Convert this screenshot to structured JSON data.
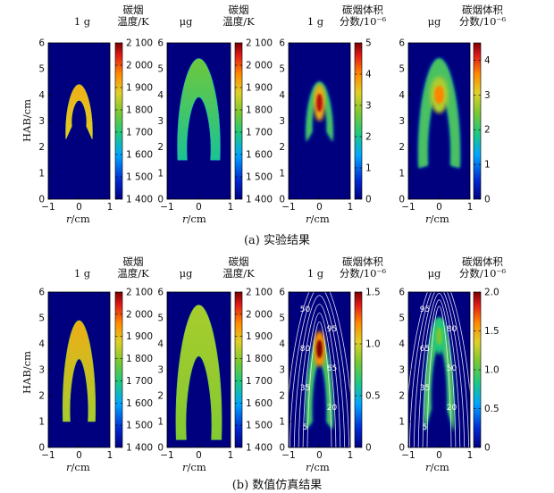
{
  "captions": {
    "row_a": "(a) 实验结果",
    "row_b": "(b) 数值仿真结果"
  },
  "gravity": {
    "normal": "1 g",
    "micro": "μg"
  },
  "colorbar_titles": {
    "temp_line1": "碳烟",
    "temp_line2": "温度/K",
    "vf_line1": "碳烟体积",
    "vf_line2": "分数/10⁻⁶"
  },
  "axis": {
    "ylabel": "HAB/cm",
    "xlabel_var": "r",
    "xlabel_unit": "/cm"
  },
  "colors": {
    "cmap": [
      "#00007f",
      "#0028d0",
      "#00a5ff",
      "#1fc880",
      "#78c832",
      "#e0d028",
      "#ff8a00",
      "#e01818",
      "#7a0000"
    ]
  },
  "chart_data": [
    {
      "type": "heatmap",
      "row": "a",
      "gravity": "1 g",
      "quantity": "碳烟温度/K",
      "xlim": [
        -1,
        1
      ],
      "ylim": [
        0,
        6
      ],
      "xticks": [
        -1,
        0,
        1
      ],
      "yticks": [
        0,
        1,
        2,
        3,
        4,
        5,
        6
      ],
      "colorbar": {
        "range": [
          1400,
          2100
        ],
        "ticks": [
          "1 400",
          "1 500",
          "1 600",
          "1 700",
          "1 800",
          "1 900",
          "2 000",
          "2 100"
        ]
      },
      "flame": {
        "tip_height": 4.4,
        "outer_base_height": 2.3,
        "inner_base_height": 2.8,
        "half_width": 0.45,
        "value_range": [
          1840,
          1880
        ]
      }
    },
    {
      "type": "heatmap",
      "row": "a",
      "gravity": "μg",
      "quantity": "碳烟温度/K",
      "xlim": [
        -1,
        1
      ],
      "ylim": [
        0,
        6
      ],
      "xticks": [
        -1,
        0,
        1
      ],
      "yticks": [
        0,
        1,
        2,
        3,
        4,
        5,
        6
      ],
      "colorbar": {
        "range": [
          1400,
          2100
        ],
        "ticks": [
          "1 400",
          "1 500",
          "1 600",
          "1 700",
          "1 800",
          "1 900",
          "2 000",
          "2 100"
        ]
      },
      "flame": {
        "tip_height": 5.4,
        "outer_base_height": 1.5,
        "inner_base_height": 1.5,
        "half_width": 0.7,
        "value_range": [
          1650,
          1740
        ]
      }
    },
    {
      "type": "heatmap",
      "row": "a",
      "gravity": "1 g",
      "quantity": "碳烟体积分数/10⁻⁶",
      "xlim": [
        -1,
        1
      ],
      "ylim": [
        0,
        6
      ],
      "xticks": [
        -1,
        0,
        1
      ],
      "yticks": [
        0,
        1,
        2,
        3,
        4,
        5,
        6
      ],
      "colorbar": {
        "range": [
          0,
          5
        ],
        "ticks": [
          "0",
          "1",
          "2",
          "3",
          "4",
          "5"
        ]
      },
      "flame": {
        "tip_height": 4.5,
        "outer_base_height": 2.2,
        "inner_base_height": 2.6,
        "half_width": 0.45,
        "peak": 4.6,
        "peak_height": 3.7
      }
    },
    {
      "type": "heatmap",
      "row": "a",
      "gravity": "μg",
      "quantity": "碳烟体积分数/10⁻⁶",
      "xlim": [
        -1,
        1
      ],
      "ylim": [
        0,
        6
      ],
      "xticks": [
        -1,
        0,
        1
      ],
      "yticks": [
        0,
        1,
        2,
        3,
        4,
        5,
        6
      ],
      "colorbar": {
        "range": [
          0,
          4.5
        ],
        "ticks": [
          "0",
          "1",
          "2",
          "3",
          "4"
        ]
      },
      "flame": {
        "tip_height": 5.4,
        "outer_base_height": 1.2,
        "inner_base_height": 1.3,
        "half_width": 0.7,
        "peak": 3.4,
        "peak_height": 4.0
      }
    },
    {
      "type": "heatmap",
      "row": "b",
      "gravity": "1 g",
      "quantity": "碳烟温度/K",
      "xlim": [
        -1,
        1
      ],
      "ylim": [
        0,
        6
      ],
      "xticks": [
        -1,
        0,
        1
      ],
      "yticks": [
        0,
        1,
        2,
        3,
        4,
        5,
        6
      ],
      "colorbar": {
        "range": [
          1400,
          2100
        ],
        "ticks": [
          "1 400",
          "1 500",
          "1 600",
          "1 700",
          "1 800",
          "1 900",
          "2 000",
          "2 100"
        ]
      },
      "flame": {
        "tip_height": 4.9,
        "outer_base_height": 1.0,
        "inner_base_height": 1.0,
        "half_width": 0.55,
        "value_range": [
          1790,
          1880
        ]
      }
    },
    {
      "type": "heatmap",
      "row": "b",
      "gravity": "μg",
      "quantity": "碳烟温度/K",
      "xlim": [
        -1,
        1
      ],
      "ylim": [
        0,
        6
      ],
      "xticks": [
        -1,
        0,
        1
      ],
      "yticks": [
        0,
        1,
        2,
        3,
        4,
        5,
        6
      ],
      "colorbar": {
        "range": [
          1400,
          2100
        ],
        "ticks": [
          "1 400",
          "1 500",
          "1 600",
          "1 700",
          "1 800",
          "1 900",
          "2 000",
          "2 100"
        ]
      },
      "flame": {
        "tip_height": 5.5,
        "outer_base_height": 0.3,
        "inner_base_height": 0.3,
        "half_width": 0.75,
        "value_range": [
          1760,
          1790
        ]
      }
    },
    {
      "type": "heatmap",
      "row": "b",
      "gravity": "1 g",
      "quantity": "碳烟体积分数/10⁻⁶",
      "xlim": [
        -1,
        1
      ],
      "ylim": [
        0,
        6
      ],
      "xticks": [
        -1,
        0,
        1
      ],
      "yticks": [
        0,
        1,
        2,
        3,
        4,
        5,
        6
      ],
      "colorbar": {
        "range": [
          0,
          1.5
        ],
        "ticks": [
          "0",
          "0.5",
          "1.0",
          "1.5"
        ]
      },
      "flame": {
        "tip_height": 4.3,
        "outer_base_height": 0.7,
        "inner_base_height": 1.0,
        "half_width": 0.45,
        "peak": 1.5,
        "peak_height": 3.8
      },
      "contour_labels": [
        "50",
        "95",
        "80",
        "65",
        "35",
        "20",
        "5"
      ]
    },
    {
      "type": "heatmap",
      "row": "b",
      "gravity": "μg",
      "quantity": "碳烟体积分数/10⁻⁶",
      "xlim": [
        -1,
        1
      ],
      "ylim": [
        0,
        6
      ],
      "xticks": [
        -1,
        0,
        1
      ],
      "yticks": [
        0,
        1,
        2,
        3,
        4,
        5,
        6
      ],
      "colorbar": {
        "range": [
          0,
          2.0
        ],
        "ticks": [
          "0",
          "0.5",
          "1.0",
          "1.5",
          "2.0"
        ]
      },
      "flame": {
        "tip_height": 5.0,
        "outer_base_height": 0.6,
        "inner_base_height": 1.5,
        "half_width": 0.5,
        "peak": 1.0,
        "peak_height": 4.3
      },
      "contour_labels": [
        "95",
        "80",
        "65",
        "50",
        "35",
        "20",
        "5"
      ]
    }
  ]
}
